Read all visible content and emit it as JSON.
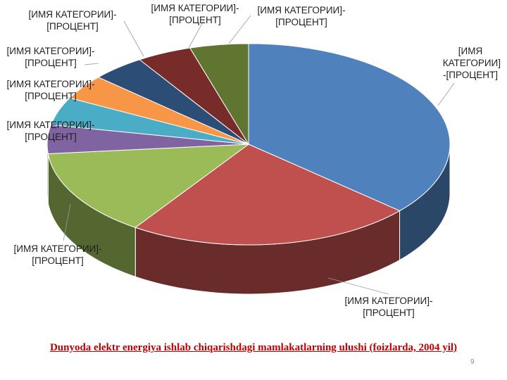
{
  "chart_data": {
    "type": "pie",
    "style": "3d",
    "title": "",
    "slices": [
      {
        "label": "[ИМЯ КАТЕГОРИИ]-[ПРОЦЕНТ]",
        "value": 36.5,
        "color": "#4f81bd"
      },
      {
        "label": "[ИМЯ КАТЕГОРИИ]-[ПРОЦЕНТ]",
        "value": 23.0,
        "color": "#c0504d"
      },
      {
        "label": "[ИМЯ КАТЕГОРИИ]-[ПРОЦЕНТ]",
        "value": 14.0,
        "color": "#9bbb59"
      },
      {
        "label": "[ИМЯ КАТЕГОРИИ]-[ПРОЦЕНТ]",
        "value": 4.6,
        "color": "#8064a2"
      },
      {
        "label": "[ИМЯ КАТЕГОРИИ]-[ПРОЦЕНТ]",
        "value": 4.5,
        "color": "#4bacc6"
      },
      {
        "label": "[ИМЯ КАТЕГОРИИ]-[ПРОЦЕНТ]",
        "value": 4.0,
        "color": "#f79646"
      },
      {
        "label": "[ИМЯ КАТЕГОРИИ]-[ПРОЦЕНТ]",
        "value": 4.3,
        "color": "#2c4d75"
      },
      {
        "label": "[ИМЯ КАТЕГОРИИ]-[ПРОЦЕНТ]",
        "value": 4.4,
        "color": "#772c2a"
      },
      {
        "label": "[ИМЯ КАТЕГОРИИ]-[ПРОЦЕНТ]",
        "value": 4.7,
        "color": "#5f7530"
      }
    ]
  },
  "slide": {
    "caption": "Dunyoda elektr energiya ishlab chiqarishdagi mamlakatlarning ulushi (foizlarda, 2004 yil)",
    "page_number": "9",
    "caption_color": "#c00000"
  }
}
